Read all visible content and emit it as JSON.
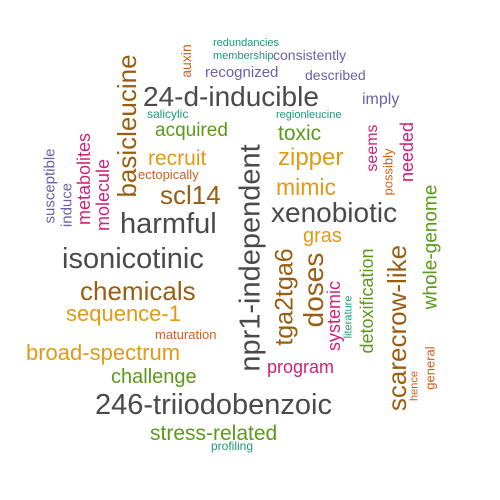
{
  "colors": {
    "dark": "#4a4a4a",
    "brown": "#9a5e12",
    "orange": "#e09a16",
    "green": "#5a9a18",
    "purple": "#6a62a8",
    "magenta": "#d0207a",
    "rust": "#d0601a",
    "teal": "#1a9a78"
  },
  "words": [
    {
      "text": "redundancies",
      "color": "teal"
    },
    {
      "text": "membership",
      "color": "teal"
    },
    {
      "text": "consistently",
      "color": "purple"
    },
    {
      "text": "auxin",
      "color": "rust"
    },
    {
      "text": "recognized",
      "color": "purple"
    },
    {
      "text": "described",
      "color": "purple"
    },
    {
      "text": "basicleucine",
      "color": "brown"
    },
    {
      "text": "24-d-inducible",
      "color": "dark"
    },
    {
      "text": "imply",
      "color": "purple"
    },
    {
      "text": "salicylic",
      "color": "teal"
    },
    {
      "text": "regionleucine",
      "color": "teal"
    },
    {
      "text": "acquired",
      "color": "green"
    },
    {
      "text": "toxic",
      "color": "green"
    },
    {
      "text": "seems",
      "color": "magenta"
    },
    {
      "text": "needed",
      "color": "magenta"
    },
    {
      "text": "susceptible",
      "color": "purple"
    },
    {
      "text": "induce",
      "color": "purple"
    },
    {
      "text": "metabolites",
      "color": "magenta"
    },
    {
      "text": "molecule",
      "color": "magenta"
    },
    {
      "text": "recruit",
      "color": "orange"
    },
    {
      "text": "npr1-independent",
      "color": "dark"
    },
    {
      "text": "zipper",
      "color": "orange"
    },
    {
      "text": "possibly",
      "color": "rust"
    },
    {
      "text": "ectopically",
      "color": "rust"
    },
    {
      "text": "whole-genome",
      "color": "green"
    },
    {
      "text": "scl14",
      "color": "brown"
    },
    {
      "text": "mimic",
      "color": "orange"
    },
    {
      "text": "xenobiotic",
      "color": "dark"
    },
    {
      "text": "harmful",
      "color": "dark"
    },
    {
      "text": "tga2tga6",
      "color": "brown"
    },
    {
      "text": "gras",
      "color": "orange"
    },
    {
      "text": "detoxification",
      "color": "green"
    },
    {
      "text": "isonicotinic",
      "color": "dark"
    },
    {
      "text": "doses",
      "color": "brown"
    },
    {
      "text": "systemic",
      "color": "magenta"
    },
    {
      "text": "scarecrow-like",
      "color": "brown"
    },
    {
      "text": "chemicals",
      "color": "brown"
    },
    {
      "text": "literature",
      "color": "teal"
    },
    {
      "text": "hence",
      "color": "rust"
    },
    {
      "text": "general",
      "color": "rust"
    },
    {
      "text": "sequence-1",
      "color": "orange"
    },
    {
      "text": "maturation",
      "color": "rust"
    },
    {
      "text": "broad-spectrum",
      "color": "orange"
    },
    {
      "text": "program",
      "color": "magenta"
    },
    {
      "text": "challenge",
      "color": "green"
    },
    {
      "text": "246-triiodobenzoic",
      "color": "dark"
    },
    {
      "text": "stress-related",
      "color": "green"
    },
    {
      "text": "profiling",
      "color": "teal"
    }
  ]
}
